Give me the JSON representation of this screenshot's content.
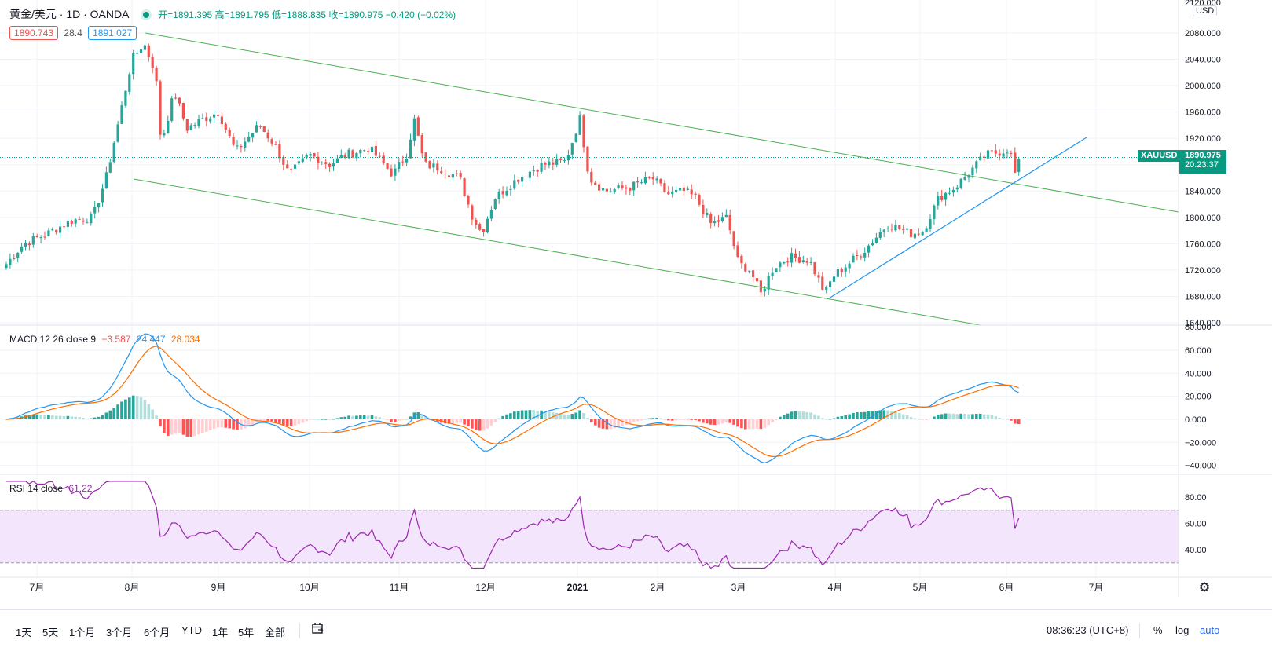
{
  "header": {
    "symbol_title": "黄金/美元 · 1D · OANDA",
    "ohlc": "开=1891.395 高=1891.795 低=1888.835 收=1890.975 −0.420 (−0.02%)",
    "bid": "1890.743",
    "spread": "28.4",
    "ask": "1891.027"
  },
  "price_axis": {
    "currency": "USD",
    "top_partial": "2120.000",
    "labels": [
      "2080.000",
      "2040.000",
      "2000.000",
      "1960.000",
      "1920.000",
      "1880.000",
      "1840.000",
      "1800.000",
      "1760.000",
      "1720.000",
      "1680.000",
      "1640.000"
    ],
    "symbol_tag": "XAUUSD",
    "last_price": "1890.975",
    "countdown": "20:23:37"
  },
  "macd": {
    "legend_name": "MACD 12 26 close 9",
    "hist": "−3.587",
    "macd_val": "24.447",
    "signal_val": "28.034",
    "axis_labels": [
      "60.000",
      "40.000",
      "20.000",
      "0.000",
      "−20.000",
      "−40.000"
    ],
    "top_partial": "80.000"
  },
  "rsi": {
    "legend_name": "RSI 14 close",
    "value": "61.22",
    "axis_labels": [
      "80.00",
      "60.00",
      "40.00"
    ]
  },
  "time_axis": {
    "labels": [
      "7月",
      "8月",
      "9月",
      "10月",
      "11月",
      "12月",
      "2021",
      "2月",
      "3月",
      "4月",
      "5月",
      "6月",
      "7月"
    ]
  },
  "toolbar": {
    "timeframes": [
      "1天",
      "5天",
      "1个月",
      "3个月",
      "6个月",
      "YTD",
      "1年",
      "5年",
      "全部"
    ],
    "clock": "08:36:23 (UTC+8)",
    "percent": "%",
    "log": "log",
    "auto": "auto"
  },
  "colors": {
    "up": "#26a69a",
    "down": "#ef5350",
    "macd_line": "#2196f3",
    "signal_line": "#ff6d00",
    "rsi_line": "#9c27b0",
    "rsi_band": "#f3e5fc",
    "channel": "#4caf50",
    "trendline": "#2196f3",
    "price_tag": "#089981"
  },
  "chart_data": [
    {
      "type": "candlestick",
      "title": "黄金/美元 · 1D · OANDA",
      "ylim": [
        1640,
        2120
      ],
      "close_series_approx": [
        {
          "x": "2020-07",
          "y": 1775
        },
        {
          "x": "2020-08-06",
          "y": 2063
        },
        {
          "x": "2020-08-11",
          "y": 1912
        },
        {
          "x": "2020-09",
          "y": 1950
        },
        {
          "x": "2020-10",
          "y": 1880
        },
        {
          "x": "2020-11-06",
          "y": 1951
        },
        {
          "x": "2020-11-30",
          "y": 1776
        },
        {
          "x": "2021-01-05",
          "y": 1950
        },
        {
          "x": "2021-02",
          "y": 1830
        },
        {
          "x": "2021-03-08",
          "y": 1683
        },
        {
          "x": "2021-03-31",
          "y": 1708
        },
        {
          "x": "2021-05",
          "y": 1790
        },
        {
          "x": "2021-06-01",
          "y": 1904
        },
        {
          "x": "2021-06-10",
          "y": 1891
        }
      ],
      "last": 1890.975
    },
    {
      "type": "line",
      "title": "MACD 12 26 close 9",
      "ylim": [
        -45,
        80
      ],
      "series": [
        {
          "name": "MACD",
          "last": 24.447
        },
        {
          "name": "Signal",
          "last": 28.034
        },
        {
          "name": "Histogram",
          "last": -3.587
        }
      ]
    },
    {
      "type": "line",
      "title": "RSI 14 close",
      "ylim": [
        20,
        95
      ],
      "series": [
        {
          "name": "RSI",
          "last": 61.22
        }
      ]
    }
  ]
}
